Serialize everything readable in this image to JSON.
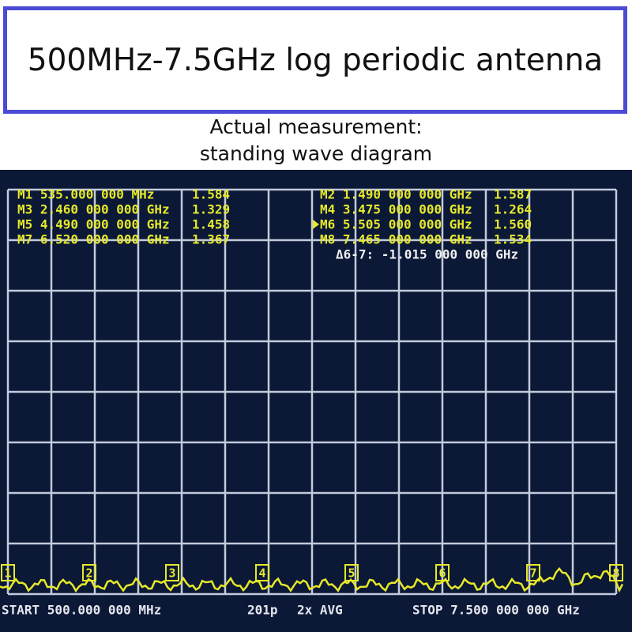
{
  "header": {
    "title": "500MHz-7.5GHz log periodic antenna"
  },
  "subtitle": [
    "Actual measurement:",
    "standing wave diagram"
  ],
  "screen": {
    "markers": [
      {
        "label": "M1 535.000 000 MHz",
        "value": "1.584"
      },
      {
        "label": "M3 2.460 000 000 GHz",
        "value": "1.329"
      },
      {
        "label": "M5 4.490 000 000 GHz",
        "value": "1.458"
      },
      {
        "label": "M7 6.520 000 000 GHz",
        "value": "1.367"
      },
      {
        "label": "M2 1.490 000 000 GHz",
        "value": "1.587"
      },
      {
        "label": "M4 3.475 000 000 GHz",
        "value": "1.264"
      },
      {
        "label": "M6 5.505 000 000 GHz",
        "value": "1.560"
      },
      {
        "label": "M8 7.465 000 000 GHz",
        "value": "1.534"
      }
    ],
    "delta": "Δ6-7: -1.015 000 000 GHz",
    "flags": [
      "1",
      "2",
      "3",
      "4",
      "5",
      "6",
      "7",
      "8"
    ],
    "footer": {
      "start": "START 500.000 000 MHz",
      "points": "201p",
      "avg": "2x AVG",
      "stop": "STOP 7.500 000 000 GHz"
    }
  }
}
